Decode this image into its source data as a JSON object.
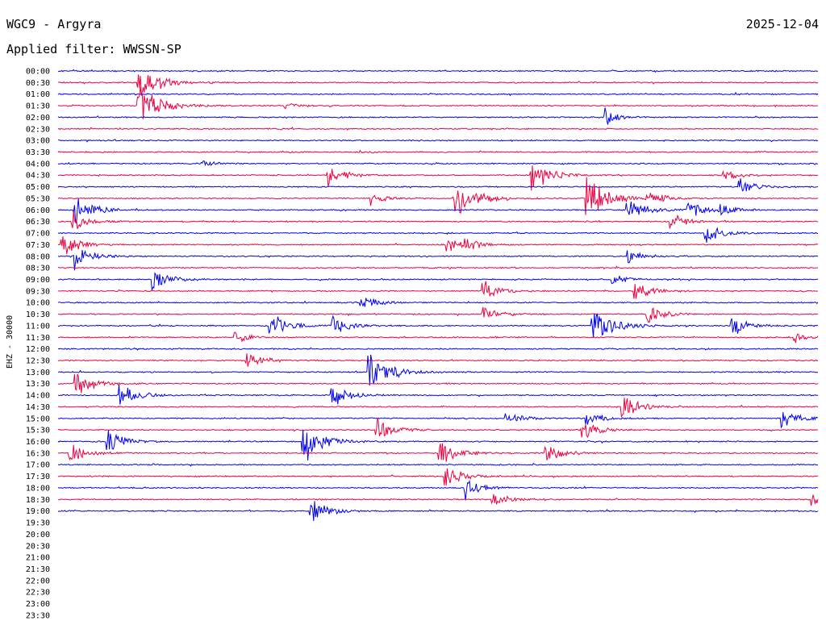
{
  "header": {
    "station": "WGC9 - Argyra",
    "date": "2025-12-04",
    "filter": "Applied filter: WWSSN-SP"
  },
  "chart_data": {
    "type": "line",
    "channel_label": "EHZ - 30000",
    "colors": {
      "odd_trace": "#0000ee",
      "even_trace": "#ee0040"
    },
    "row_interval_minutes": 30,
    "recorded_until": "19:30",
    "time_labels": [
      "00:00",
      "00:30",
      "01:00",
      "01:30",
      "02:00",
      "02:30",
      "03:00",
      "03:30",
      "04:00",
      "04:30",
      "05:00",
      "05:30",
      "06:00",
      "06:30",
      "07:00",
      "07:30",
      "08:00",
      "08:30",
      "09:00",
      "09:30",
      "10:00",
      "10:30",
      "11:00",
      "11:30",
      "12:00",
      "12:30",
      "13:00",
      "13:30",
      "14:00",
      "14:30",
      "15:00",
      "15:30",
      "16:00",
      "16:30",
      "17:00",
      "17:30",
      "18:00",
      "18:30",
      "19:00",
      "19:30",
      "20:00",
      "20:30",
      "21:00",
      "21:30",
      "22:00",
      "22:30",
      "23:00",
      "23:30"
    ],
    "events": [
      {
        "row": 1,
        "minute": 3.1,
        "amplitude": 0.9
      },
      {
        "row": 3,
        "minute": 3.1,
        "amplitude": 1.0
      },
      {
        "row": 3,
        "minute": 8.9,
        "amplitude": 0.15
      },
      {
        "row": 4,
        "minute": 21.5,
        "amplitude": 0.4
      },
      {
        "row": 7,
        "minute": 11.8,
        "amplitude": 0.1
      },
      {
        "row": 8,
        "minute": 5.7,
        "amplitude": 0.15
      },
      {
        "row": 9,
        "minute": 10.6,
        "amplitude": 0.5
      },
      {
        "row": 9,
        "minute": 18.6,
        "amplitude": 0.8
      },
      {
        "row": 9,
        "minute": 26.2,
        "amplitude": 0.3
      },
      {
        "row": 10,
        "minute": 26.8,
        "amplitude": 0.4
      },
      {
        "row": 11,
        "minute": 15.6,
        "amplitude": 1.0
      },
      {
        "row": 11,
        "minute": 20.8,
        "amplitude": 1.0
      },
      {
        "row": 11,
        "minute": 12.3,
        "amplitude": 0.3
      },
      {
        "row": 11,
        "minute": 23.2,
        "amplitude": 0.4
      },
      {
        "row": 12,
        "minute": 0.6,
        "amplitude": 0.7
      },
      {
        "row": 12,
        "minute": 22.4,
        "amplitude": 0.6
      },
      {
        "row": 12,
        "minute": 24.8,
        "amplitude": 0.5
      },
      {
        "row": 12,
        "minute": 26.0,
        "amplitude": 0.3
      },
      {
        "row": 13,
        "minute": 0.5,
        "amplitude": 0.5
      },
      {
        "row": 13,
        "minute": 24.1,
        "amplitude": 0.4
      },
      {
        "row": 14,
        "minute": 25.5,
        "amplitude": 0.5
      },
      {
        "row": 15,
        "minute": 0.1,
        "amplitude": 0.6
      },
      {
        "row": 15,
        "minute": 15.3,
        "amplitude": 0.4
      },
      {
        "row": 15,
        "minute": 16.0,
        "amplitude": 0.3
      },
      {
        "row": 16,
        "minute": 0.6,
        "amplitude": 0.6
      },
      {
        "row": 16,
        "minute": 22.4,
        "amplitude": 0.4
      },
      {
        "row": 18,
        "minute": 3.7,
        "amplitude": 0.6
      },
      {
        "row": 18,
        "minute": 21.8,
        "amplitude": 0.3
      },
      {
        "row": 19,
        "minute": 16.7,
        "amplitude": 0.5
      },
      {
        "row": 19,
        "minute": 22.7,
        "amplitude": 0.5
      },
      {
        "row": 20,
        "minute": 11.9,
        "amplitude": 0.4
      },
      {
        "row": 21,
        "minute": 16.7,
        "amplitude": 0.4
      },
      {
        "row": 21,
        "minute": 23.2,
        "amplitude": 0.5
      },
      {
        "row": 22,
        "minute": 8.3,
        "amplitude": 0.7
      },
      {
        "row": 22,
        "minute": 10.8,
        "amplitude": 0.5
      },
      {
        "row": 22,
        "minute": 21.0,
        "amplitude": 1.0
      },
      {
        "row": 22,
        "minute": 26.5,
        "amplitude": 0.5
      },
      {
        "row": 23,
        "minute": 6.9,
        "amplitude": 0.3
      },
      {
        "row": 23,
        "minute": 29.0,
        "amplitude": 0.3
      },
      {
        "row": 25,
        "minute": 7.4,
        "amplitude": 0.5
      },
      {
        "row": 26,
        "minute": 12.2,
        "amplitude": 1.0
      },
      {
        "row": 27,
        "minute": 0.6,
        "amplitude": 0.7
      },
      {
        "row": 28,
        "minute": 2.4,
        "amplitude": 0.6
      },
      {
        "row": 28,
        "minute": 10.7,
        "amplitude": 0.6
      },
      {
        "row": 29,
        "minute": 22.2,
        "amplitude": 0.6
      },
      {
        "row": 30,
        "minute": 17.6,
        "amplitude": 0.4
      },
      {
        "row": 30,
        "minute": 20.8,
        "amplitude": 0.4
      },
      {
        "row": 30,
        "minute": 28.5,
        "amplitude": 0.5
      },
      {
        "row": 31,
        "minute": 12.5,
        "amplitude": 0.6
      },
      {
        "row": 31,
        "minute": 20.6,
        "amplitude": 0.5
      },
      {
        "row": 32,
        "minute": 1.9,
        "amplitude": 0.6
      },
      {
        "row": 32,
        "minute": 9.6,
        "amplitude": 1.0
      },
      {
        "row": 33,
        "minute": 0.4,
        "amplitude": 0.6
      },
      {
        "row": 33,
        "minute": 15.0,
        "amplitude": 0.6
      },
      {
        "row": 33,
        "minute": 19.2,
        "amplitude": 0.5
      },
      {
        "row": 35,
        "minute": 15.2,
        "amplitude": 0.6
      },
      {
        "row": 36,
        "minute": 16.0,
        "amplitude": 0.5
      },
      {
        "row": 37,
        "minute": 17.1,
        "amplitude": 0.4
      },
      {
        "row": 37,
        "minute": 29.7,
        "amplitude": 0.3
      },
      {
        "row": 38,
        "minute": 9.9,
        "amplitude": 0.6
      }
    ]
  }
}
